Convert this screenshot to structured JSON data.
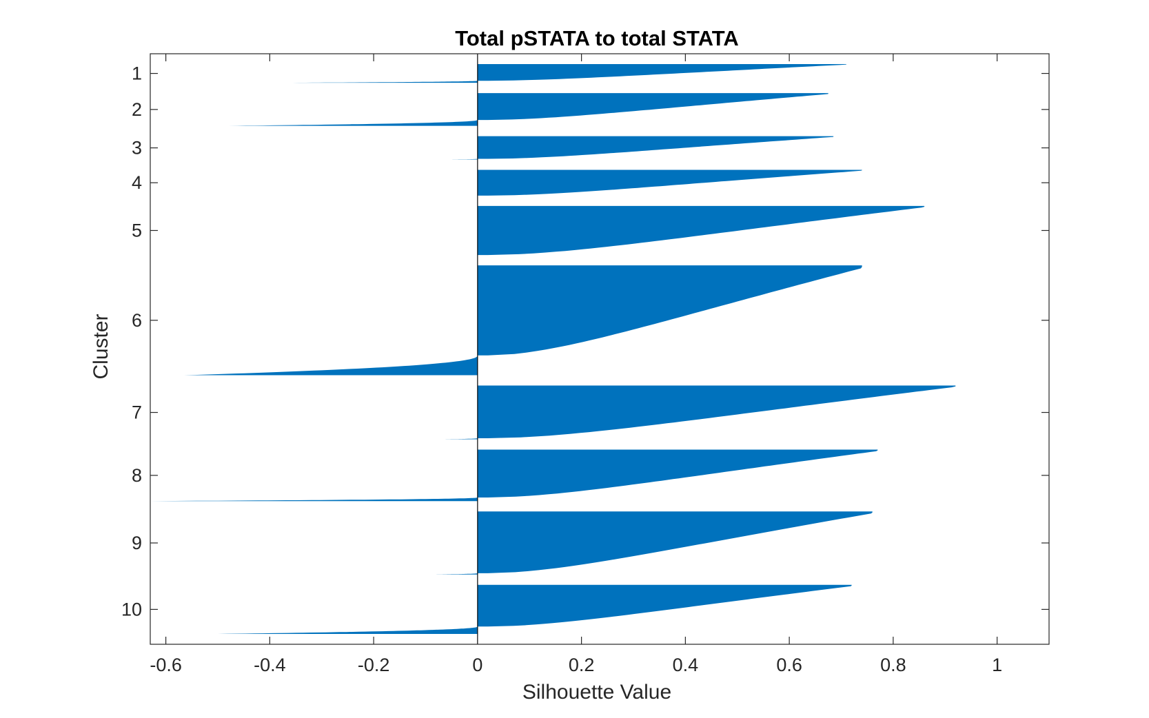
{
  "chart_data": {
    "type": "silhouette",
    "title": "Total pSTATA to total STATA",
    "xlabel": "Silhouette Value",
    "ylabel": "Cluster",
    "xlim": [
      -0.63,
      1.1
    ],
    "xticks": [
      -0.6,
      -0.4,
      -0.2,
      0,
      0.2,
      0.4,
      0.6,
      0.8,
      1
    ],
    "xtick_labels": [
      "-0.6",
      "-0.4",
      "-0.2",
      "0",
      "0.2",
      "0.4",
      "0.6",
      "0.8",
      "1"
    ],
    "bar_color": "#0072BD",
    "grid": false,
    "clusters": [
      {
        "label": "1",
        "max": 0.71,
        "min": -0.37,
        "neg_fraction": 0.11,
        "size": 0.04
      },
      {
        "label": "2",
        "max": 0.675,
        "min": -0.48,
        "neg_fraction": 0.18,
        "size": 0.07
      },
      {
        "label": "3",
        "max": 0.685,
        "min": -0.06,
        "neg_fraction": 0.03,
        "size": 0.05
      },
      {
        "label": "4",
        "max": 0.74,
        "min": 0.0,
        "neg_fraction": 0.0,
        "size": 0.055
      },
      {
        "label": "5",
        "max": 0.86,
        "min": 0.0,
        "neg_fraction": 0.0,
        "size": 0.105
      },
      {
        "label": "6",
        "max": 0.74,
        "min": -0.565,
        "neg_fraction": 0.18,
        "size": 0.235
      },
      {
        "label": "7",
        "max": 0.92,
        "min": -0.07,
        "neg_fraction": 0.02,
        "size": 0.115
      },
      {
        "label": "8",
        "max": 0.77,
        "min": -0.63,
        "neg_fraction": 0.07,
        "size": 0.11
      },
      {
        "label": "9",
        "max": 0.76,
        "min": -0.09,
        "neg_fraction": 0.02,
        "size": 0.135
      },
      {
        "label": "10",
        "max": 0.72,
        "min": -0.5,
        "neg_fraction": 0.15,
        "size": 0.105
      }
    ]
  }
}
